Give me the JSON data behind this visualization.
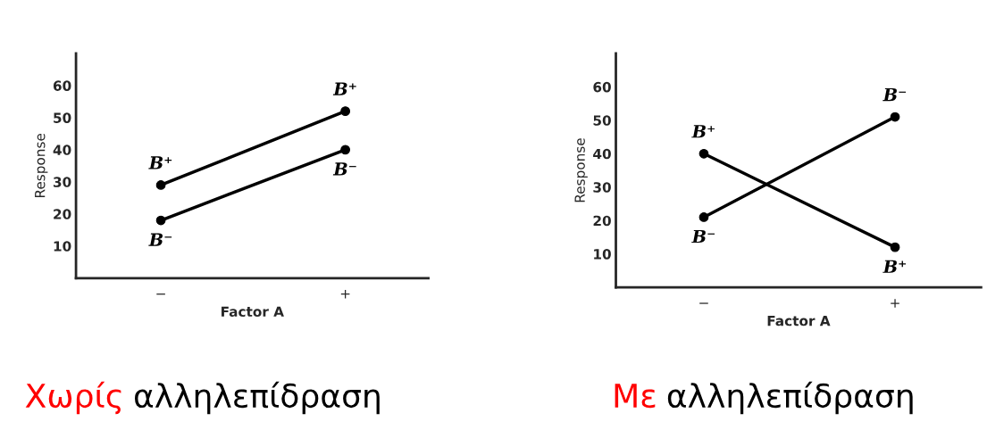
{
  "chart_data": [
    {
      "type": "line",
      "xlabel": "Factor A",
      "ylabel": "Response",
      "categories": [
        "−",
        "+"
      ],
      "series": [
        {
          "name": "B⁺",
          "color": "#000000",
          "values": [
            29,
            52
          ]
        },
        {
          "name": "B⁻",
          "color": "#000000",
          "values": [
            18,
            40
          ]
        }
      ],
      "ylim": [
        0,
        70
      ],
      "yticks": [
        10,
        20,
        30,
        40,
        50,
        60
      ],
      "marker": "circle",
      "line_style": "solid",
      "grid": false,
      "legend": false,
      "annotations": [
        "Χωρίς αλληλεπίδραση"
      ]
    },
    {
      "type": "line",
      "xlabel": "Factor A",
      "ylabel": "Response",
      "categories": [
        "−",
        "+"
      ],
      "series": [
        {
          "name": "B⁺",
          "color": "#000000",
          "values": [
            40,
            12
          ]
        },
        {
          "name": "B⁻",
          "color": "#000000",
          "values": [
            21,
            51
          ]
        }
      ],
      "ylim": [
        0,
        70
      ],
      "yticks": [
        10,
        20,
        30,
        40,
        50,
        60
      ],
      "marker": "circle",
      "line_style": "solid",
      "grid": false,
      "legend": false,
      "annotations": [
        "Με αλληλεπίδραση"
      ]
    }
  ]
}
